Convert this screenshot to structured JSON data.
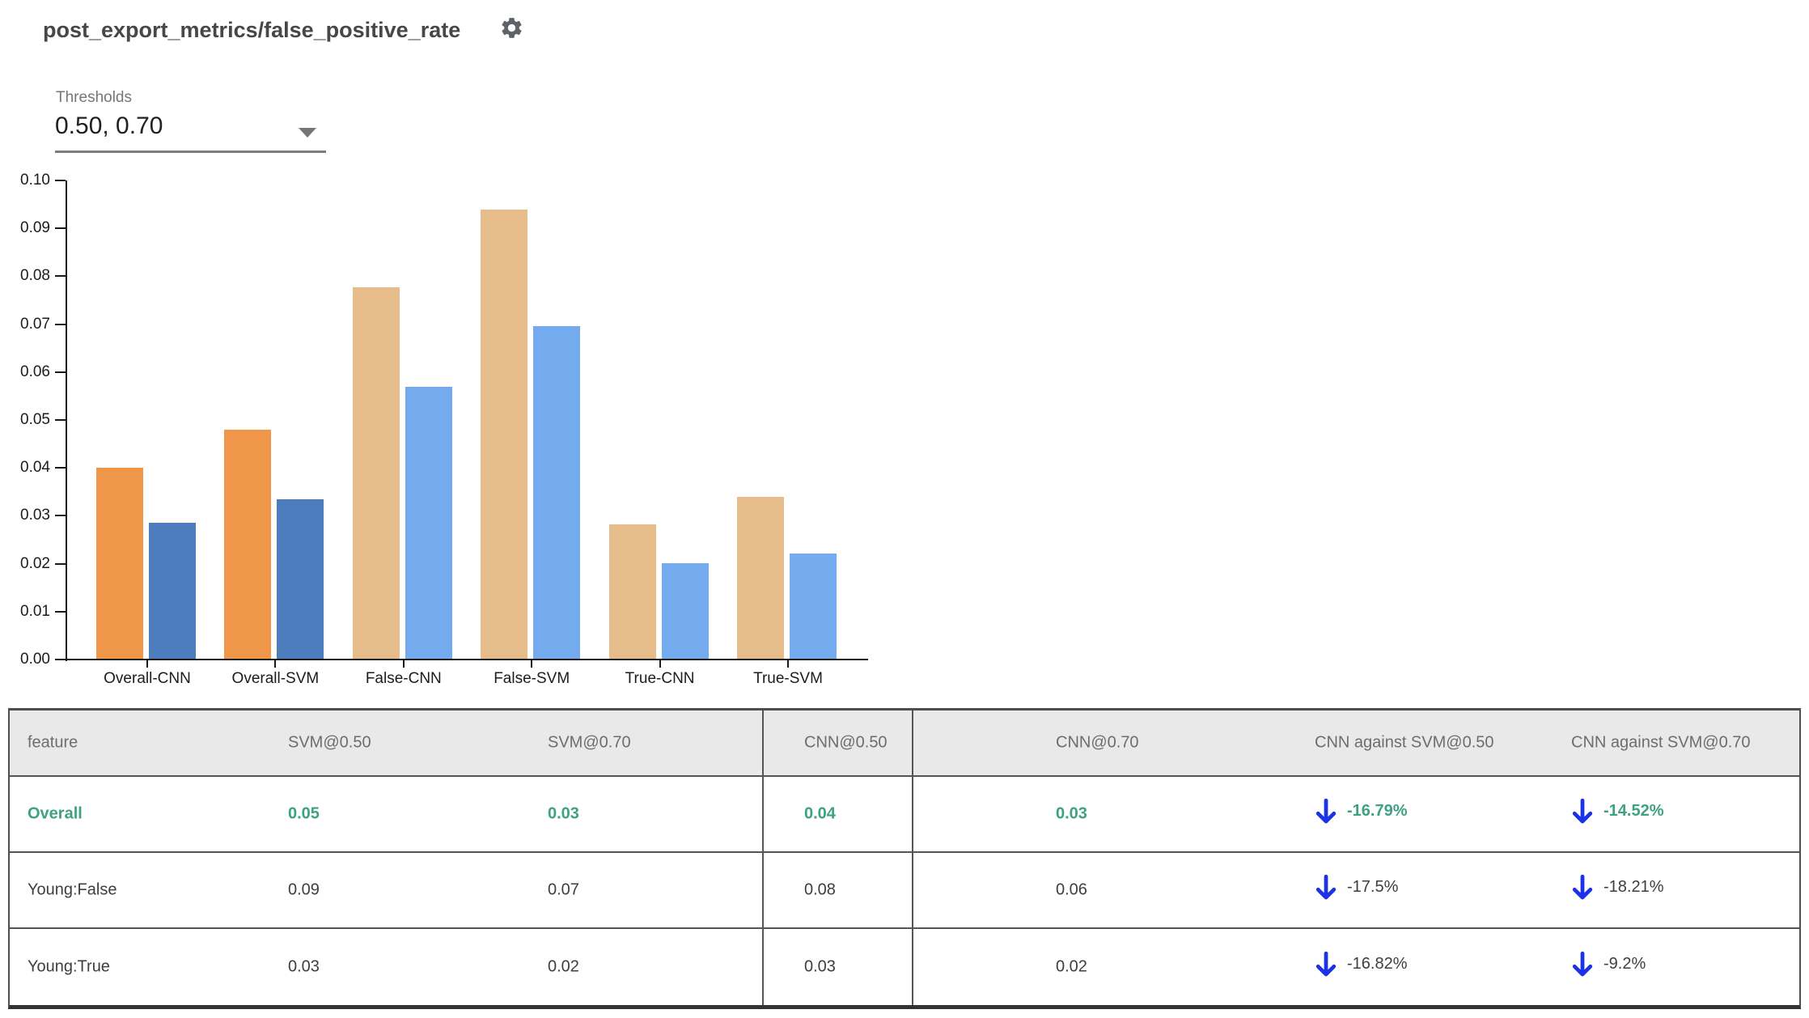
{
  "header": {
    "title": "post_export_metrics/false_positive_rate",
    "settings_icon": "gear-icon"
  },
  "thresholds": {
    "label": "Thresholds",
    "value": "0.50, 0.70"
  },
  "chart_data": {
    "type": "bar",
    "title": "",
    "xlabel": "",
    "ylabel": "",
    "ylim": [
      0,
      0.1
    ],
    "ytick_step": 0.01,
    "grid": false,
    "legend": "none",
    "categories": [
      "Overall-CNN",
      "Overall-SVM",
      "False-CNN",
      "False-SVM",
      "True-CNN",
      "True-SVM"
    ],
    "series": [
      {
        "name": "threshold 0.50",
        "values": [
          0.0399,
          0.0478,
          0.0775,
          0.0938,
          0.028,
          0.0337
        ]
      },
      {
        "name": "threshold 0.70",
        "values": [
          0.0283,
          0.0332,
          0.0568,
          0.0695,
          0.02,
          0.022
        ]
      }
    ],
    "group_styles": [
      "emphasis",
      "emphasis",
      "muted",
      "muted",
      "muted",
      "muted"
    ],
    "palette": {
      "emphasis": [
        "#F0964A",
        "#4D7CBD"
      ],
      "muted": [
        "#E6BD8A",
        "#74ABEF"
      ]
    }
  },
  "table": {
    "columns": [
      "feature",
      "SVM@0.50",
      "SVM@0.70",
      "CNN@0.50",
      "CNN@0.70",
      "CNN against SVM@0.50",
      "CNN against SVM@0.70"
    ],
    "arrow_direction": "down",
    "colors": {
      "highlight_green": "#3EA183",
      "arrow_blue": "#1B32E6",
      "header_bg": "#E9E9E9",
      "border": "#555555",
      "body_text": "#3B3E42",
      "header_text": "#6B6E70"
    },
    "rows": [
      {
        "feature": "Overall",
        "svm50": "0.05",
        "svm70": "0.03",
        "cnn50": "0.04",
        "cnn70": "0.03",
        "cmp50": "-16.79%",
        "cmp70": "-14.52%",
        "highlighted": true
      },
      {
        "feature": "Young:False",
        "svm50": "0.09",
        "svm70": "0.07",
        "cnn50": "0.08",
        "cnn70": "0.06",
        "cmp50": "-17.5%",
        "cmp70": "-18.21%",
        "highlighted": false
      },
      {
        "feature": "Young:True",
        "svm50": "0.03",
        "svm70": "0.02",
        "cnn50": "0.03",
        "cnn70": "0.02",
        "cmp50": "-16.82%",
        "cmp70": "-9.2%",
        "highlighted": false
      }
    ]
  }
}
